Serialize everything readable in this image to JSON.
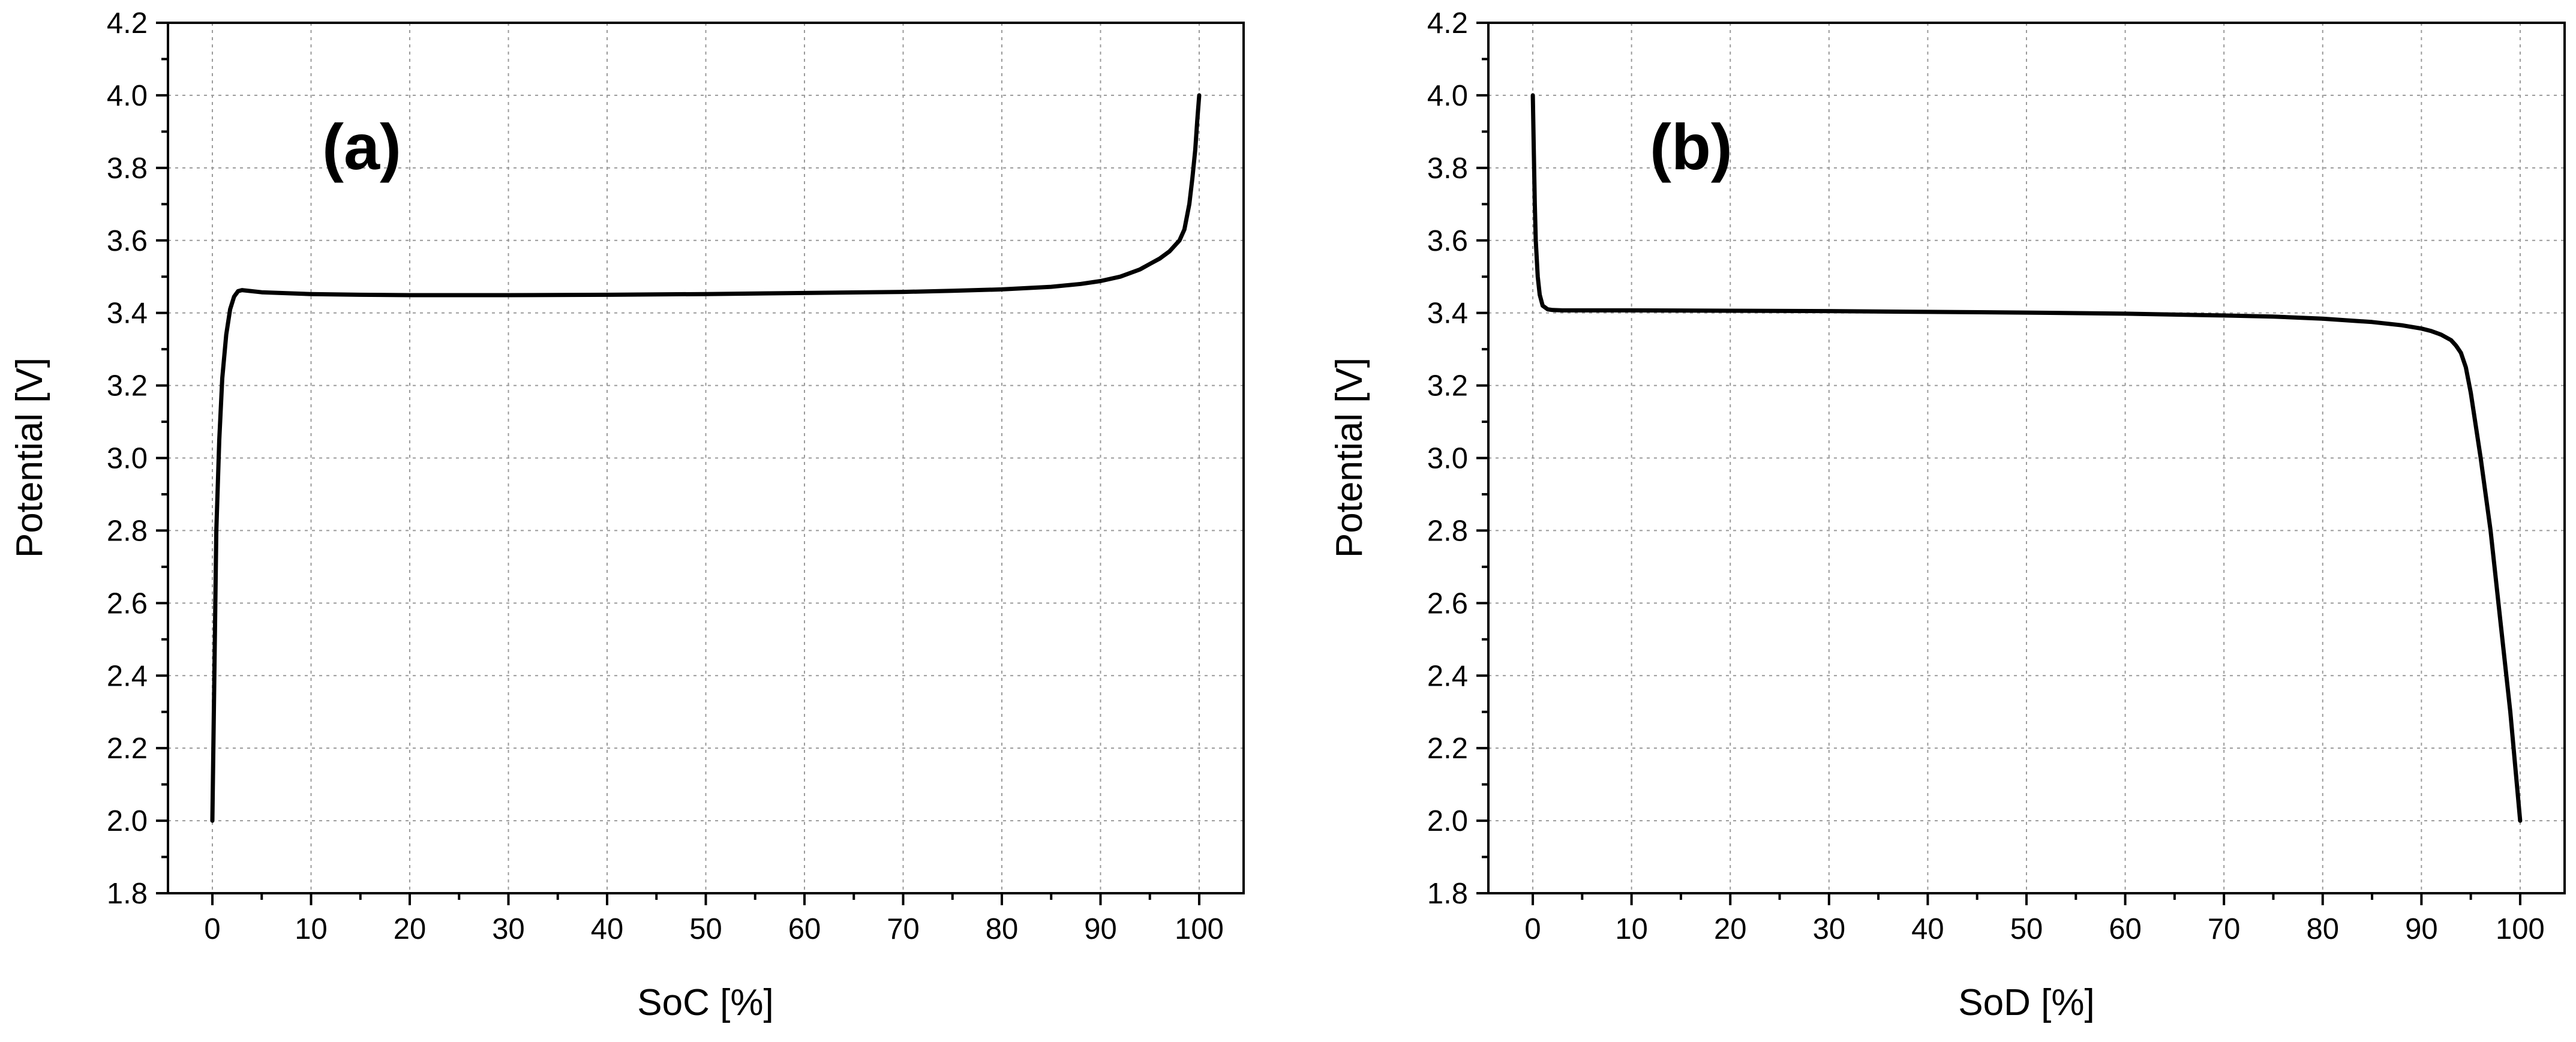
{
  "chart_data": [
    {
      "type": "line",
      "panel_label": "(a)",
      "xlabel": "SoC [%]",
      "ylabel": "Potential [V]",
      "xlim": [
        -4.5,
        104.5
      ],
      "ylim": [
        1.8,
        4.2
      ],
      "xticks": [
        "0",
        "10",
        "20",
        "30",
        "40",
        "50",
        "60",
        "70",
        "80",
        "90",
        "100"
      ],
      "yticks": [
        "1.8",
        "2.0",
        "2.2",
        "2.4",
        "2.6",
        "2.8",
        "3.0",
        "3.2",
        "3.4",
        "3.6",
        "3.8",
        "4.0",
        "4.2"
      ],
      "grid": true,
      "series": [
        {
          "x": [
            0,
            0.2,
            0.4,
            0.7,
            1.0,
            1.4,
            1.8,
            2.2,
            2.6,
            3.0,
            5,
            10,
            15,
            20,
            30,
            40,
            50,
            60,
            70,
            75,
            80,
            85,
            88,
            90,
            92,
            94,
            95,
            96,
            97,
            98,
            98.5,
            99,
            99.3,
            99.6,
            99.8,
            100
          ],
          "values": [
            2.0,
            2.4,
            2.8,
            3.05,
            3.22,
            3.34,
            3.41,
            3.445,
            3.46,
            3.463,
            3.457,
            3.452,
            3.45,
            3.449,
            3.449,
            3.45,
            3.452,
            3.455,
            3.458,
            3.461,
            3.465,
            3.472,
            3.48,
            3.488,
            3.5,
            3.52,
            3.535,
            3.55,
            3.57,
            3.6,
            3.63,
            3.7,
            3.77,
            3.85,
            3.93,
            4.0
          ]
        }
      ]
    },
    {
      "type": "line",
      "panel_label": "(b)",
      "xlabel": "SoD [%]",
      "ylabel": "Potential [V]",
      "xlim": [
        -4.5,
        104.5
      ],
      "ylim": [
        1.8,
        4.2
      ],
      "xticks": [
        "0",
        "10",
        "20",
        "30",
        "40",
        "50",
        "60",
        "70",
        "80",
        "90",
        "100"
      ],
      "yticks": [
        "1.8",
        "2.0",
        "2.2",
        "2.4",
        "2.6",
        "2.8",
        "3.0",
        "3.2",
        "3.4",
        "3.6",
        "3.8",
        "4.0",
        "4.2"
      ],
      "grid": true,
      "series": [
        {
          "x": [
            0,
            0.1,
            0.2,
            0.3,
            0.5,
            0.7,
            1.0,
            1.5,
            2.0,
            3,
            5,
            10,
            20,
            30,
            40,
            50,
            60,
            70,
            75,
            80,
            85,
            88,
            90,
            91,
            92,
            93,
            93.5,
            94,
            94.5,
            95,
            96,
            97,
            98,
            99,
            99.5,
            100
          ],
          "values": [
            4.0,
            3.85,
            3.7,
            3.6,
            3.5,
            3.45,
            3.42,
            3.41,
            3.408,
            3.407,
            3.407,
            3.407,
            3.406,
            3.405,
            3.403,
            3.401,
            3.398,
            3.393,
            3.39,
            3.384,
            3.375,
            3.366,
            3.357,
            3.35,
            3.34,
            3.325,
            3.31,
            3.29,
            3.25,
            3.18,
            3.0,
            2.8,
            2.55,
            2.3,
            2.15,
            2.0
          ]
        }
      ]
    }
  ]
}
